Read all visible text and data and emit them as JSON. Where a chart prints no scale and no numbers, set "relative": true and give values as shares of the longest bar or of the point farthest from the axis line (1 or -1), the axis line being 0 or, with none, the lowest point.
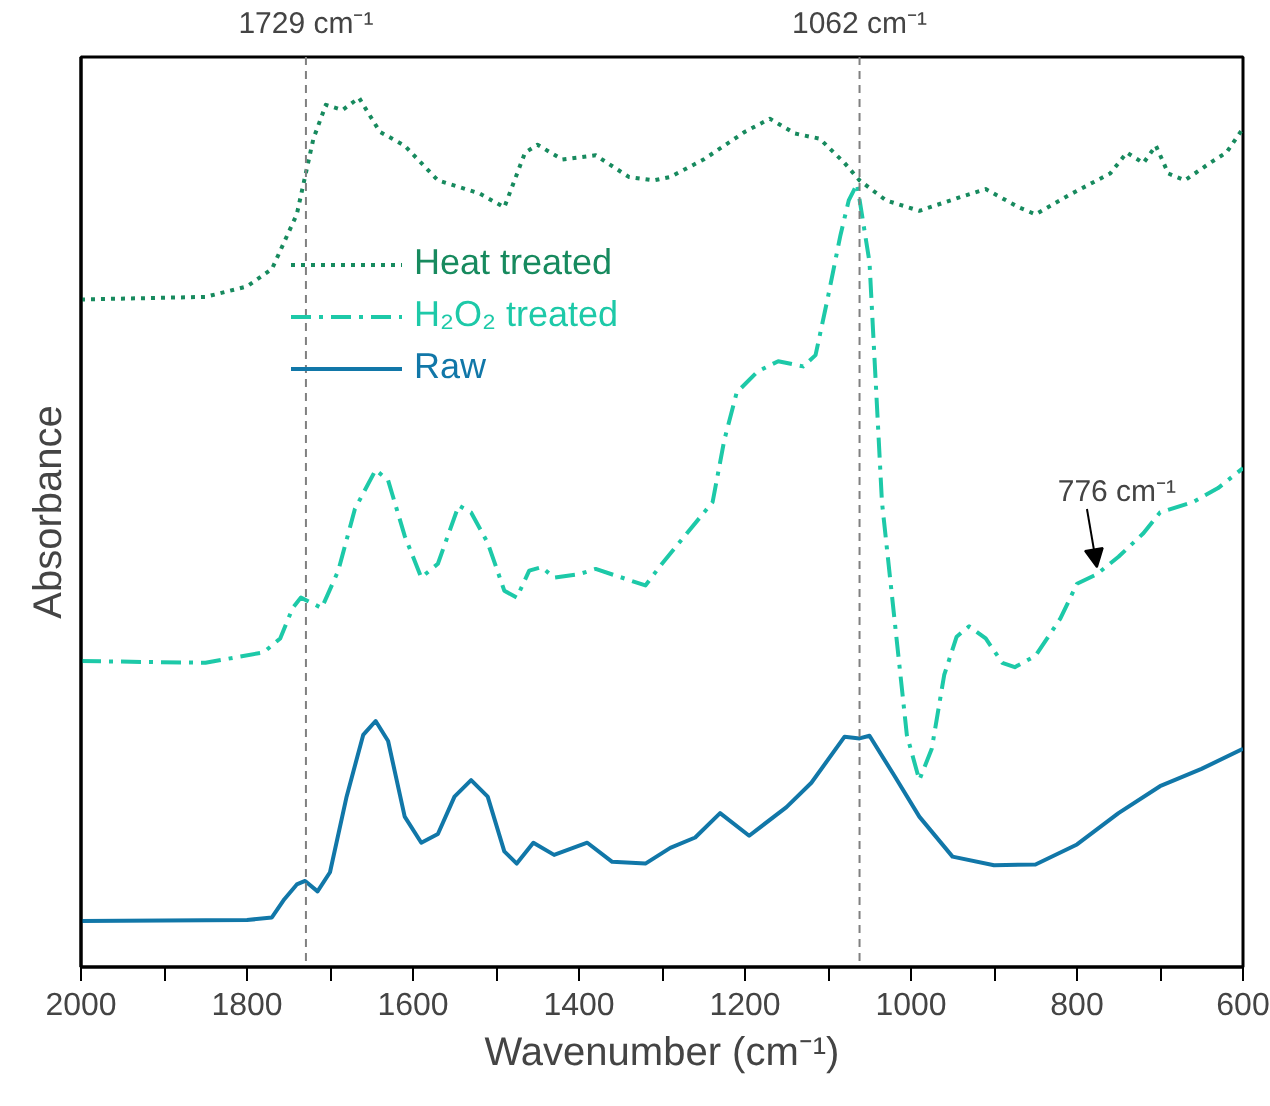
{
  "chart_data": {
    "type": "line",
    "relative": true,
    "xlabel": "Wavenumber (cm⁻¹)",
    "ylabel": "Absorbance",
    "xlim": [
      2000,
      600
    ],
    "xticks": [
      2000,
      {
        "value": 1900,
        "label": null
      },
      1800,
      {
        "value": 1700,
        "label": null
      },
      1600,
      {
        "value": 1500,
        "label": null
      },
      1400,
      {
        "value": 1300,
        "label": null
      },
      1200,
      {
        "value": 1100,
        "label": null
      },
      1000,
      {
        "value": 900,
        "label": null
      },
      800,
      {
        "value": 700,
        "label": null
      },
      600
    ],
    "grid": false,
    "legend": "top left",
    "tick_labels": "x",
    "series": [
      {
        "name": "Heat treated",
        "color": "#178a5e",
        "line_style": "dotted",
        "x": [
          2000,
          1850,
          1800,
          1770,
          1740,
          1720,
          1705,
          1685,
          1665,
          1640,
          1610,
          1570,
          1520,
          1490,
          1465,
          1450,
          1420,
          1380,
          1340,
          1310,
          1290,
          1250,
          1200,
          1170,
          1140,
          1110,
          1080,
          1062,
          1030,
          990,
          940,
          910,
          870,
          850,
          810,
          760,
          740,
          720,
          705,
          690,
          670,
          640,
          620,
          600
        ],
        "values": [
          0.768,
          0.771,
          0.783,
          0.803,
          0.866,
          0.953,
          0.992,
          0.986,
          1.0,
          0.961,
          0.945,
          0.905,
          0.89,
          0.874,
          0.937,
          0.946,
          0.929,
          0.934,
          0.909,
          0.905,
          0.909,
          0.929,
          0.961,
          0.976,
          0.959,
          0.953,
          0.925,
          0.905,
          0.882,
          0.87,
          0.886,
          0.895,
          0.874,
          0.866,
          0.888,
          0.913,
          0.937,
          0.925,
          0.945,
          0.913,
          0.905,
          0.925,
          0.937,
          0.965
        ]
      },
      {
        "name": "H₂O₂ treated",
        "color": "#1dc9a8",
        "line_style": "dashdot",
        "x": [
          2000,
          1850,
          1780,
          1760,
          1745,
          1735,
          1710,
          1690,
          1670,
          1645,
          1630,
          1610,
          1590,
          1570,
          1545,
          1530,
          1510,
          1490,
          1475,
          1460,
          1445,
          1430,
          1400,
          1380,
          1320,
          1300,
          1239,
          1225,
          1210,
          1185,
          1160,
          1130,
          1115,
          1100,
          1085,
          1075,
          1065,
          1050,
          1035,
          1020,
          1005,
          990,
          975,
          960,
          945,
          930,
          910,
          890,
          875,
          850,
          820,
          800,
          776,
          750,
          720,
          700,
          660,
          630,
          600
        ],
        "values": [
          0.352,
          0.35,
          0.362,
          0.378,
          0.413,
          0.425,
          0.413,
          0.456,
          0.527,
          0.572,
          0.56,
          0.496,
          0.448,
          0.464,
          0.531,
          0.523,
          0.488,
          0.433,
          0.425,
          0.456,
          0.46,
          0.448,
          0.452,
          0.458,
          0.439,
          0.464,
          0.535,
          0.606,
          0.661,
          0.685,
          0.697,
          0.691,
          0.704,
          0.771,
          0.842,
          0.882,
          0.901,
          0.811,
          0.535,
          0.401,
          0.267,
          0.215,
          0.251,
          0.336,
          0.38,
          0.392,
          0.378,
          0.35,
          0.345,
          0.358,
          0.401,
          0.441,
          0.452,
          0.472,
          0.499,
          0.523,
          0.535,
          0.551,
          0.574
        ]
      },
      {
        "name": "Raw",
        "color": "#1177a8",
        "line_style": "solid",
        "x": [
          2000,
          1800,
          1770,
          1755,
          1740,
          1730,
          1715,
          1700,
          1680,
          1660,
          1645,
          1630,
          1610,
          1590,
          1570,
          1550,
          1530,
          1510,
          1490,
          1475,
          1455,
          1430,
          1390,
          1360,
          1320,
          1290,
          1260,
          1230,
          1195,
          1150,
          1120,
          1080,
          1062,
          1050,
          1020,
          990,
          950,
          900,
          850,
          800,
          750,
          700,
          650,
          600
        ],
        "values": [
          0.053,
          0.054,
          0.057,
          0.078,
          0.095,
          0.099,
          0.087,
          0.109,
          0.196,
          0.267,
          0.283,
          0.26,
          0.173,
          0.143,
          0.153,
          0.196,
          0.215,
          0.196,
          0.133,
          0.119,
          0.143,
          0.129,
          0.143,
          0.121,
          0.119,
          0.137,
          0.149,
          0.177,
          0.151,
          0.184,
          0.212,
          0.265,
          0.263,
          0.266,
          0.22,
          0.173,
          0.127,
          0.117,
          0.118,
          0.141,
          0.177,
          0.208,
          0.228,
          0.251
        ]
      }
    ],
    "ref_lines": [
      {
        "axis": "x",
        "value": 1729,
        "label": "1729 cm⁻¹",
        "color": "#808080",
        "line_style": "dashed"
      },
      {
        "axis": "x",
        "value": 1062,
        "label": "1062 cm⁻¹",
        "color": "#808080",
        "line_style": "dashed"
      }
    ],
    "annotations": [
      {
        "text": "776 cm⁻¹",
        "x": 776,
        "y": 0.452
      }
    ]
  }
}
